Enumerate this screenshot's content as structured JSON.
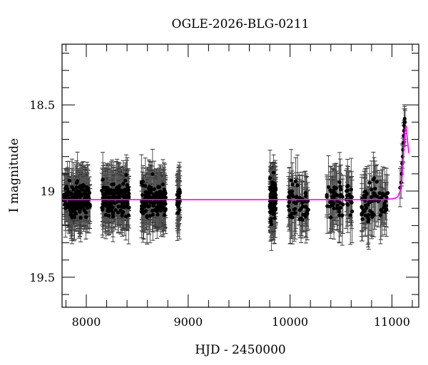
{
  "chart_data": {
    "type": "scatter",
    "title": "OGLE-2026-BLG-0211",
    "xlabel": "HJD - 2450000",
    "ylabel": "I magnitude",
    "xlim": [
      7762,
      11263
    ],
    "ylim": [
      19.674,
      18.148
    ],
    "y_inverted": true,
    "x_ticks_major": [
      8000,
      9000,
      10000,
      11000
    ],
    "x_tick_labels": [
      "8000",
      "9000",
      "10000",
      "11000"
    ],
    "x_minor_step": 200,
    "y_ticks_major": [
      18.5,
      19,
      19.5
    ],
    "y_tick_labels": [
      "18.5",
      "19",
      "19.5"
    ],
    "y_minor_step": 0.1,
    "grid": false,
    "legend": null,
    "baseline_mag": 19.05,
    "series": [
      {
        "name": "observations",
        "style": "black points with gray error bars",
        "seasons": [
          {
            "x_start": 7780,
            "x_end": 8040,
            "mean_mag": 19.05,
            "scatter": 0.12,
            "err": 0.13,
            "n": 180
          },
          {
            "x_start": 8150,
            "x_end": 8420,
            "mean_mag": 19.05,
            "scatter": 0.12,
            "err": 0.13,
            "n": 170
          },
          {
            "x_start": 8540,
            "x_end": 8780,
            "mean_mag": 19.05,
            "scatter": 0.12,
            "err": 0.13,
            "n": 170
          },
          {
            "x_start": 8890,
            "x_end": 8920,
            "mean_mag": 19.05,
            "scatter": 0.08,
            "err": 0.13,
            "n": 40
          },
          {
            "x_start": 9800,
            "x_end": 9860,
            "mean_mag": 19.05,
            "scatter": 0.13,
            "err": 0.13,
            "n": 120
          },
          {
            "x_start": 9980,
            "x_end": 10180,
            "mean_mag": 19.07,
            "scatter": 0.12,
            "err": 0.14,
            "n": 60
          },
          {
            "x_start": 10360,
            "x_end": 10610,
            "mean_mag": 19.05,
            "scatter": 0.12,
            "err": 0.14,
            "n": 70
          },
          {
            "x_start": 10700,
            "x_end": 10960,
            "mean_mag": 19.07,
            "scatter": 0.13,
            "err": 0.14,
            "n": 70
          }
        ],
        "event_points": [
          [
            11080,
            18.98
          ],
          [
            11090,
            18.95
          ],
          [
            11095,
            18.9
          ],
          [
            11100,
            18.84
          ],
          [
            11105,
            18.8
          ],
          [
            11108,
            18.76
          ],
          [
            11112,
            18.72
          ],
          [
            11115,
            18.68
          ],
          [
            11118,
            18.65
          ],
          [
            11120,
            18.62
          ],
          [
            11122,
            18.6
          ],
          [
            11125,
            18.58
          ],
          [
            11128,
            18.6
          ],
          [
            11130,
            18.63
          ]
        ]
      },
      {
        "name": "model",
        "style": "magenta line",
        "color": "#ff00ff",
        "points": [
          [
            7762,
            19.05
          ],
          [
            10900,
            19.05
          ],
          [
            11000,
            19.045
          ],
          [
            11040,
            19.04
          ],
          [
            11060,
            19.03
          ],
          [
            11080,
            19.0
          ],
          [
            11095,
            18.95
          ],
          [
            11105,
            18.88
          ],
          [
            11115,
            18.78
          ],
          [
            11125,
            18.68
          ],
          [
            11132,
            18.63
          ],
          [
            11138,
            18.62
          ],
          [
            11145,
            18.66
          ],
          [
            11155,
            18.72
          ],
          [
            11165,
            18.78
          ]
        ]
      }
    ]
  }
}
